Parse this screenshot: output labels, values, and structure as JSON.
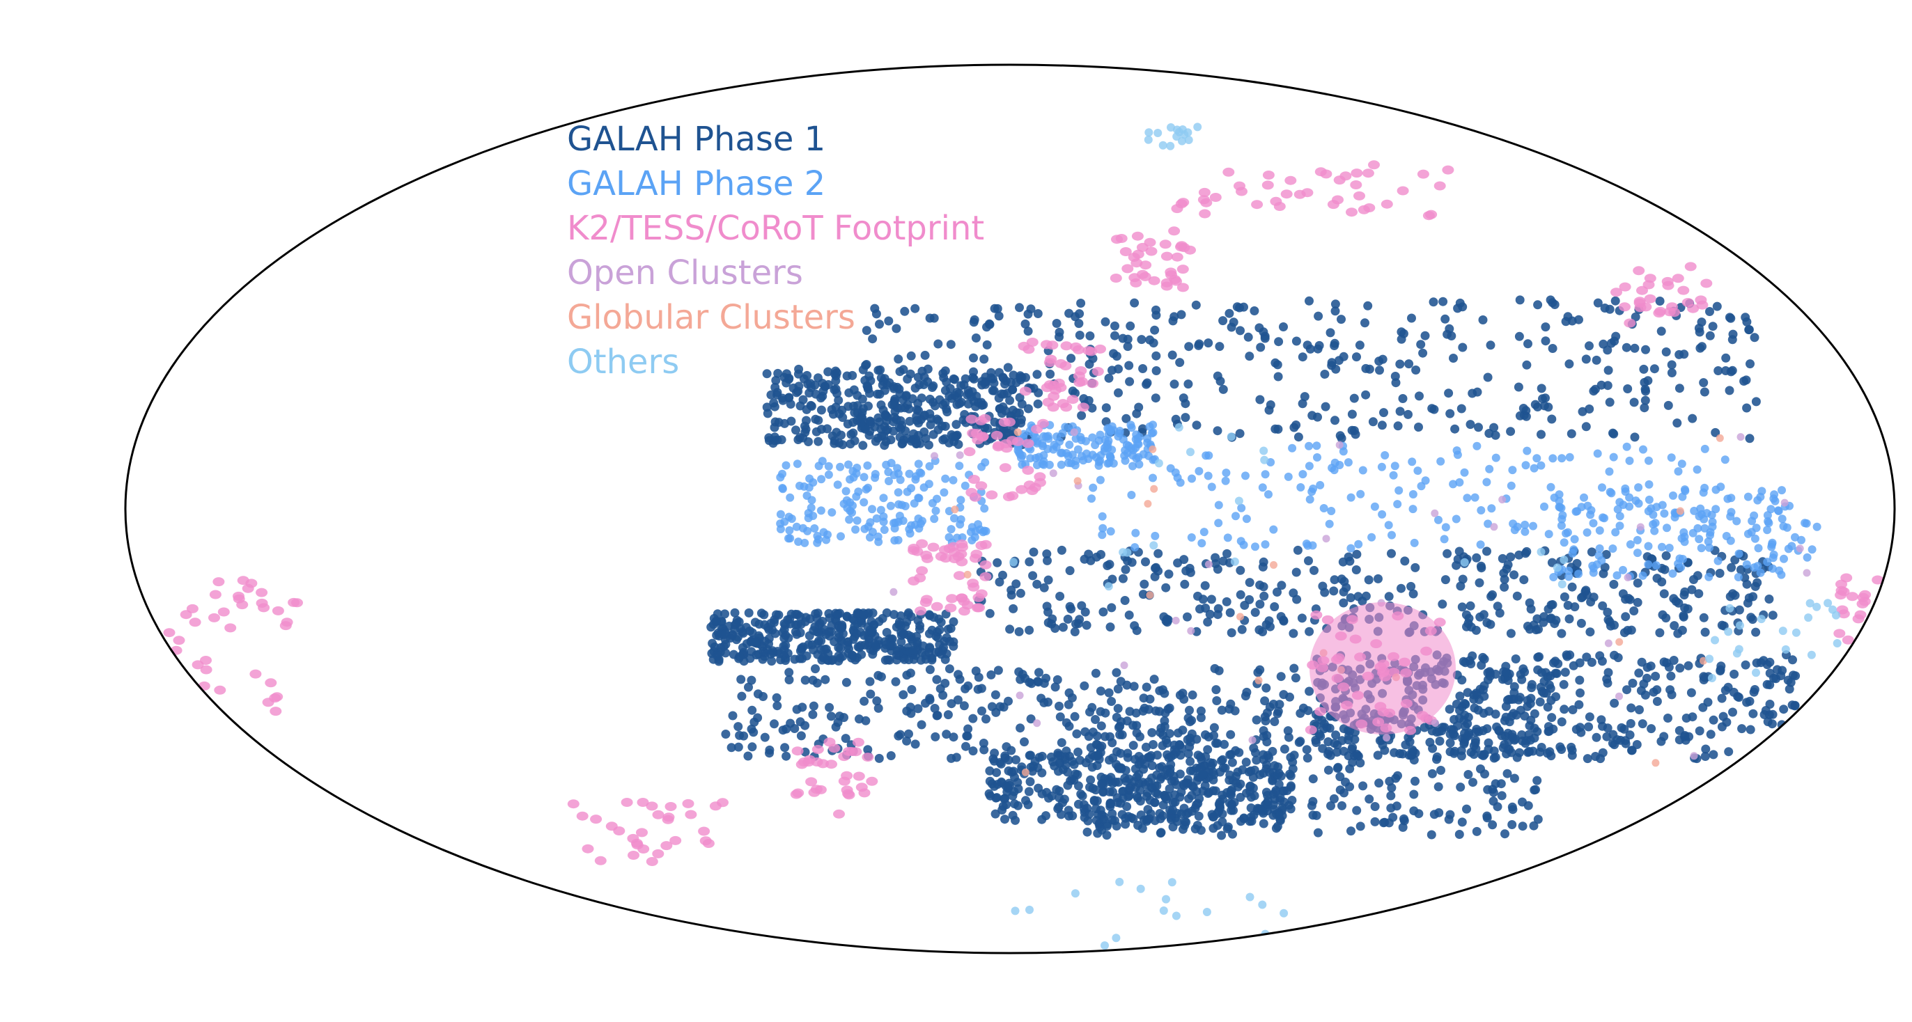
{
  "map_data": {
    "projection": "mollweide",
    "survey_layers": [
      {
        "name": "GALAH Phase 1",
        "color": "#1f5391",
        "count": 3000
      },
      {
        "name": "GALAH Phase 2",
        "color": "#5ba3f5",
        "count": 640
      },
      {
        "name": "K2/TESS/CoRoT Footprint",
        "color": "#f08ccc",
        "count": 380
      },
      {
        "name": "Open Clusters",
        "color": "#c9a2d8",
        "count": 30
      },
      {
        "name": "Globular Clusters",
        "color": "#f4a896",
        "count": 20
      },
      {
        "name": "Others",
        "color": "#8ecbf2",
        "count": 70
      }
    ]
  },
  "legend": {
    "items": [
      {
        "label": "GALAH Phase 1",
        "color": "#1f5391"
      },
      {
        "label": "GALAH Phase 2",
        "color": "#5ba3f5"
      },
      {
        "label": "K2/TESS/CoRoT Footprint",
        "color": "#f08ccc"
      },
      {
        "label": "Open Clusters",
        "color": "#c9a2d8"
      },
      {
        "label": "Globular Clusters",
        "color": "#f4a896"
      },
      {
        "label": "Others",
        "color": "#8ecbf2"
      }
    ]
  }
}
